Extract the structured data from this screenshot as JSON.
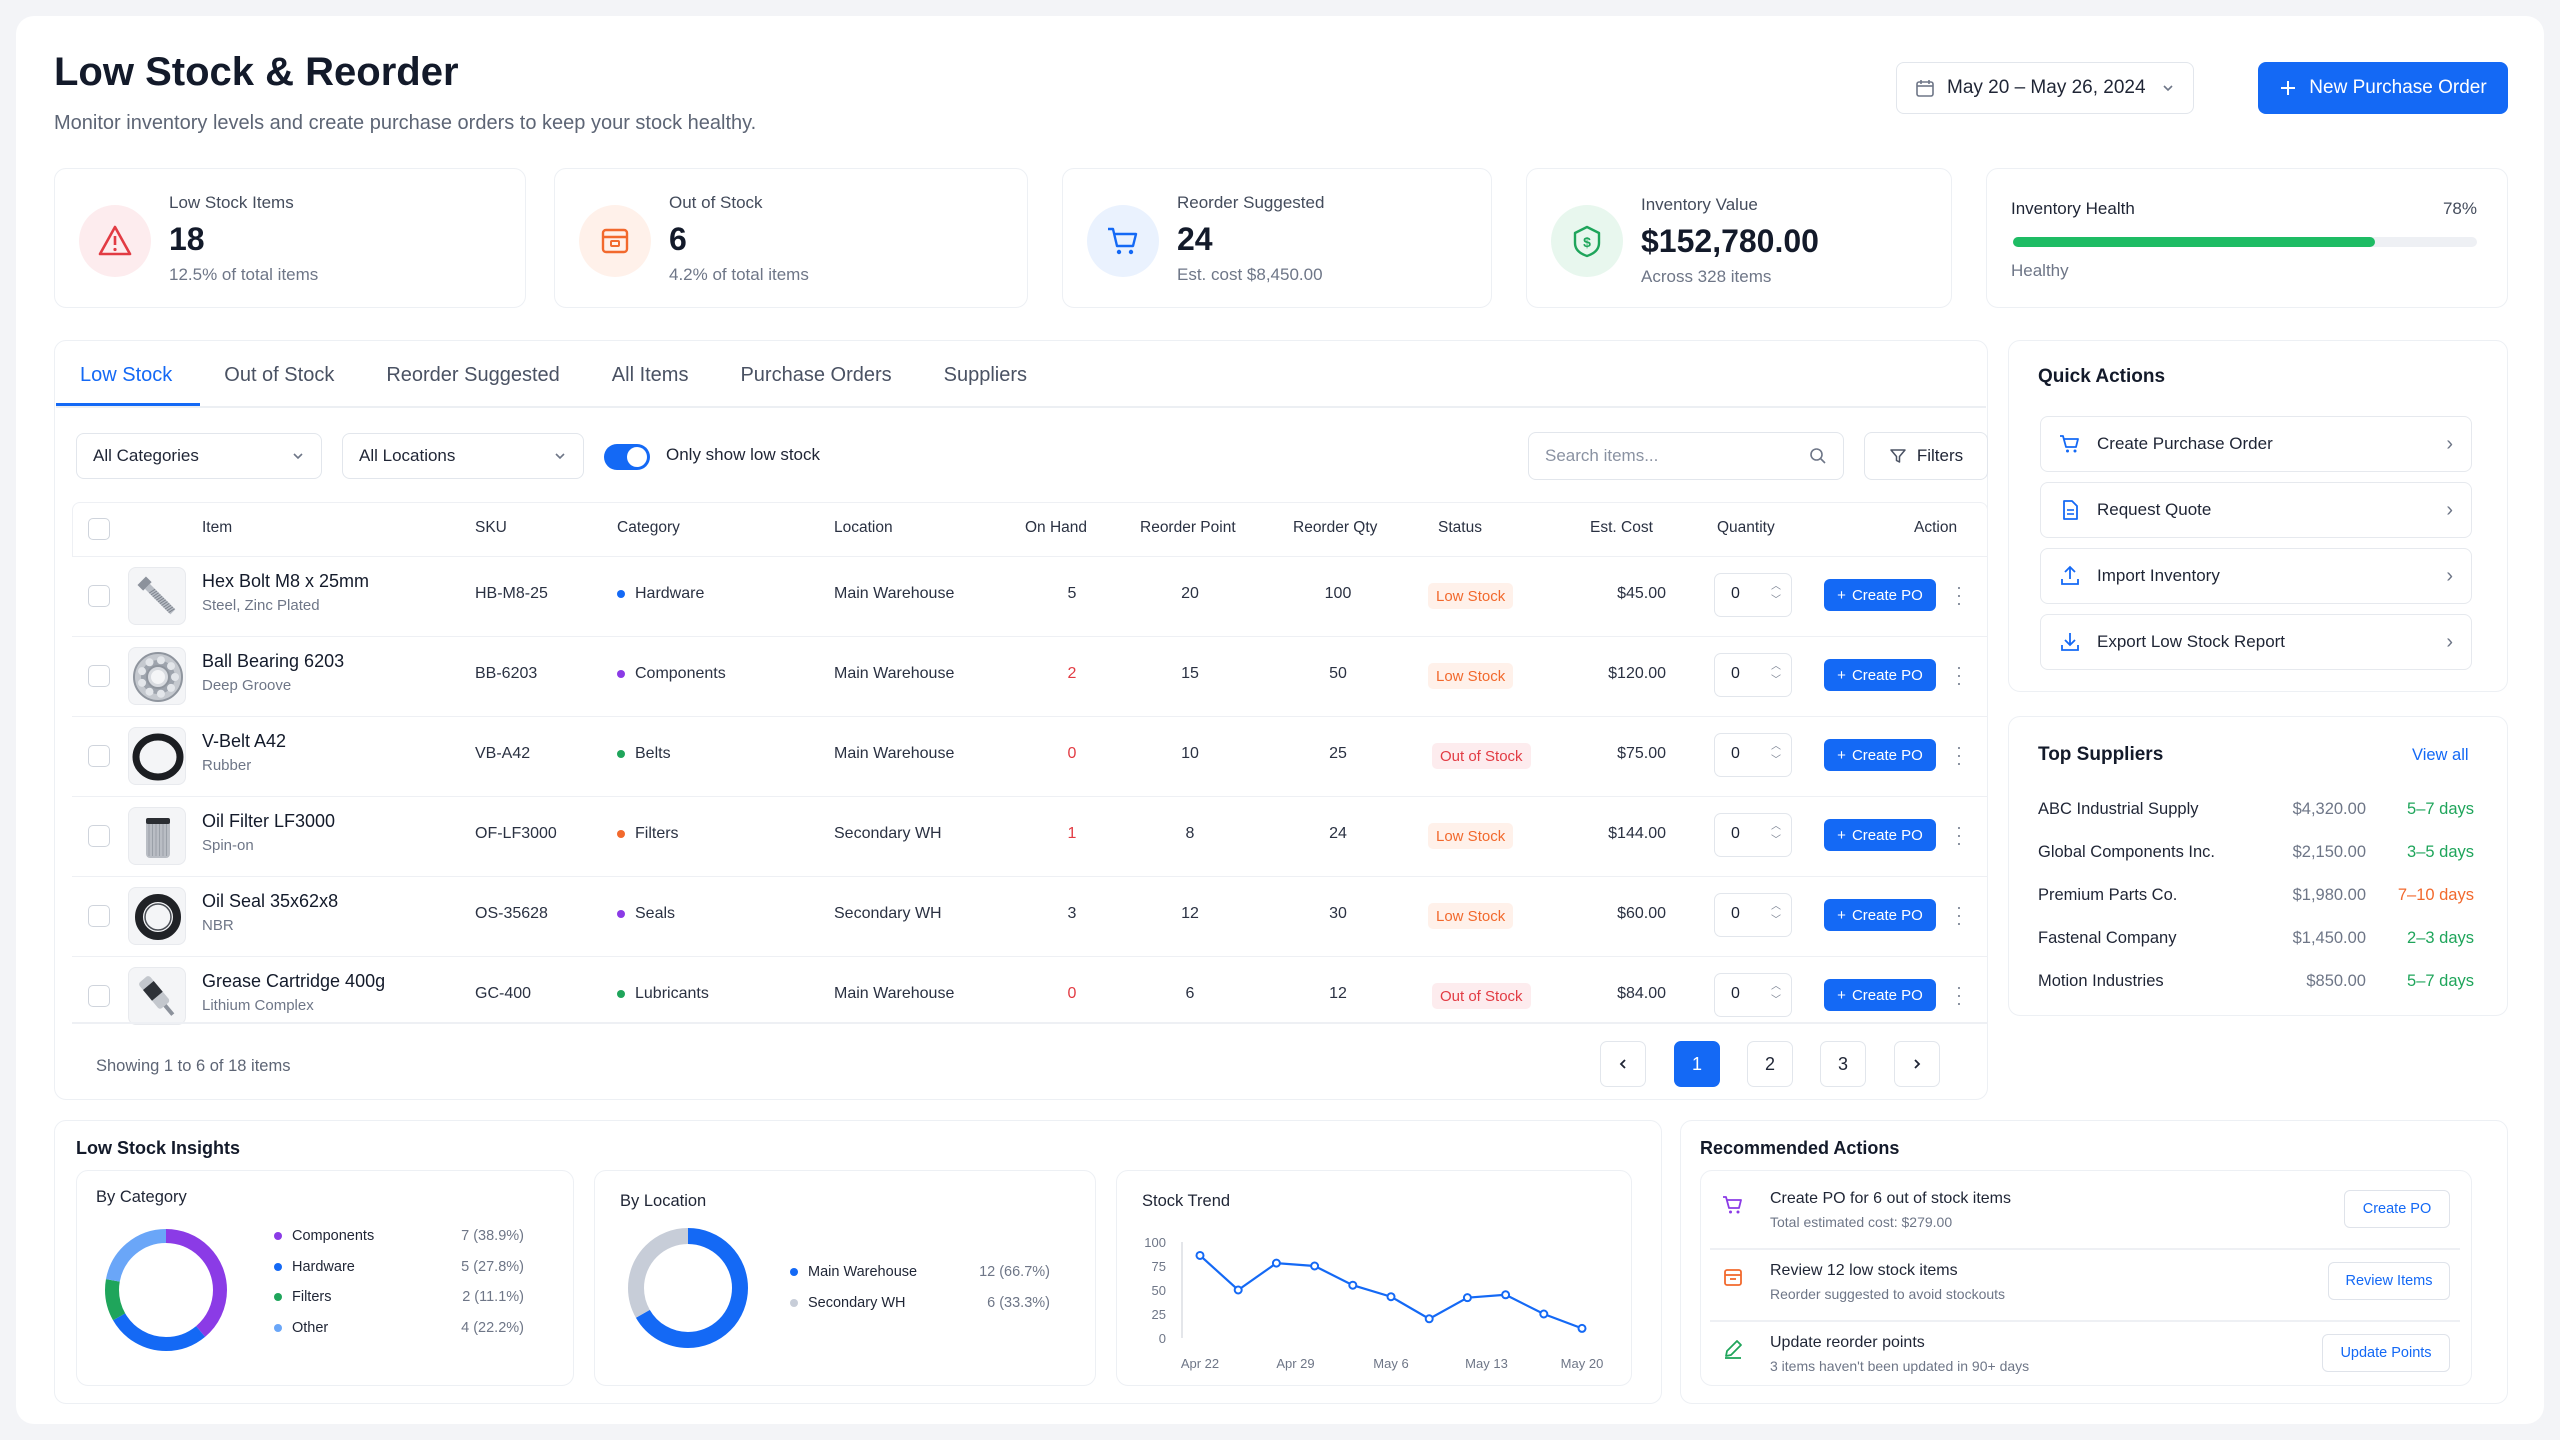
{
  "header": {
    "title": "Low Stock & Reorder",
    "subtitle": "Monitor inventory levels and create purchase orders to keep your stock healthy.",
    "date_range": "May 20 – May 26, 2024",
    "new_po_label": "New Purchase Order"
  },
  "stats": [
    {
      "label": "Low Stock Items",
      "value": "18",
      "sub": "12.5% of total items",
      "color": "#e23b43"
    },
    {
      "label": "Out of Stock",
      "value": "6",
      "sub": "4.2% of total items",
      "color": "#f2692d"
    },
    {
      "label": "Reorder Suggested",
      "value": "24",
      "sub": "Est. cost $8,450.00",
      "color": "#1469f5"
    },
    {
      "label": "Inventory Value",
      "value": "$152,780.00",
      "sub": "Across 328 items",
      "color": "#1fa55b"
    }
  ],
  "health": {
    "label": "Inventory Health",
    "percent_label": "78%",
    "percent": 0.78,
    "status": "Healthy",
    "color": "#1ebc64"
  },
  "tabs": [
    "Low Stock",
    "Out of Stock",
    "Reorder Suggested",
    "All Items",
    "Purchase Orders",
    "Suppliers"
  ],
  "filters": {
    "category": "All Categories",
    "location": "All Locations",
    "toggle_label": "Only show low stock",
    "search_placeholder": "Search items...",
    "filters_label": "Filters"
  },
  "table": {
    "headers": [
      "Item",
      "SKU",
      "Category",
      "Location",
      "On Hand",
      "Reorder Point",
      "Reorder Qty",
      "Status",
      "Est. Cost",
      "Quantity",
      "Action"
    ],
    "action_label": "Create PO",
    "rows": [
      {
        "name": "Hex Bolt M8 x 25mm",
        "sub": "Steel, Zinc Plated",
        "sku": "HB-M8-25",
        "category": "Hardware",
        "cat_color": "#1469f5",
        "location": "Main Warehouse",
        "on_hand": "5",
        "reorder_point": "20",
        "reorder_qty": "100",
        "status": "Low Stock",
        "status_type": "low",
        "cost": "$45.00",
        "qty": "0",
        "icon": "bolt-icon"
      },
      {
        "name": "Ball Bearing 6203",
        "sub": "Deep Groove",
        "sku": "BB-6203",
        "category": "Components",
        "cat_color": "#8b3be6",
        "location": "Main Warehouse",
        "on_hand": "2",
        "reorder_point": "15",
        "reorder_qty": "50",
        "status": "Low Stock",
        "status_type": "low",
        "cost": "$120.00",
        "qty": "0",
        "icon": "bearing-icon"
      },
      {
        "name": "V-Belt A42",
        "sub": "Rubber",
        "sku": "VB-A42",
        "category": "Belts",
        "cat_color": "#1fa55b",
        "location": "Main Warehouse",
        "on_hand": "0",
        "reorder_point": "10",
        "reorder_qty": "25",
        "status": "Out of Stock",
        "status_type": "out",
        "cost": "$75.00",
        "qty": "0",
        "icon": "belt-icon"
      },
      {
        "name": "Oil Filter LF3000",
        "sub": "Spin-on",
        "sku": "OF-LF3000",
        "category": "Filters",
        "cat_color": "#f2692d",
        "location": "Secondary WH",
        "on_hand": "1",
        "reorder_point": "8",
        "reorder_qty": "24",
        "status": "Low Stock",
        "status_type": "low",
        "cost": "$144.00",
        "qty": "0",
        "icon": "filter-icon"
      },
      {
        "name": "Oil Seal 35x62x8",
        "sub": "NBR",
        "sku": "OS-35628",
        "category": "Seals",
        "cat_color": "#8b3be6",
        "location": "Secondary WH",
        "on_hand": "3",
        "reorder_point": "12",
        "reorder_qty": "30",
        "status": "Low Stock",
        "status_type": "low",
        "cost": "$60.00",
        "qty": "0",
        "icon": "seal-icon"
      },
      {
        "name": "Grease Cartridge 400g",
        "sub": "Lithium Complex",
        "sku": "GC-400",
        "category": "Lubricants",
        "cat_color": "#1fa55b",
        "location": "Main Warehouse",
        "on_hand": "0",
        "reorder_point": "6",
        "reorder_qty": "12",
        "status": "Out of Stock",
        "status_type": "out",
        "cost": "$84.00",
        "qty": "0",
        "icon": "grease-icon"
      }
    ],
    "showing": "Showing 1 to 6 of 18 items",
    "pages": [
      "1",
      "2",
      "3"
    ]
  },
  "quick_actions": {
    "title": "Quick Actions",
    "items": [
      {
        "label": "Create Purchase Order",
        "icon": "cart-icon"
      },
      {
        "label": "Request Quote",
        "icon": "document-icon"
      },
      {
        "label": "Import Inventory",
        "icon": "upload-icon"
      },
      {
        "label": "Export Low Stock Report",
        "icon": "download-icon"
      }
    ]
  },
  "suppliers": {
    "title": "Top Suppliers",
    "view_all": "View all",
    "items": [
      {
        "name": "ABC Industrial Supply",
        "amount": "$4,320.00",
        "days": "5–7 days",
        "color": "#1fa55b"
      },
      {
        "name": "Global Components Inc.",
        "amount": "$2,150.00",
        "days": "3–5 days",
        "color": "#1fa55b"
      },
      {
        "name": "Premium Parts Co.",
        "amount": "$1,980.00",
        "days": "7–10 days",
        "color": "#f2692d"
      },
      {
        "name": "Fastenal Company",
        "amount": "$1,450.00",
        "days": "2–3 days",
        "color": "#1fa55b"
      },
      {
        "name": "Motion Industries",
        "amount": "$850.00",
        "days": "5–7 days",
        "color": "#1fa55b"
      }
    ]
  },
  "insights": {
    "title": "Low Stock Insights",
    "by_category": {
      "title": "By Category",
      "items": [
        {
          "label": "Components",
          "value": "7 (38.9%)",
          "count": 7,
          "color": "#8b3be6"
        },
        {
          "label": "Hardware",
          "value": "5 (27.8%)",
          "count": 5,
          "color": "#1469f5"
        },
        {
          "label": "Filters",
          "value": "2 (11.1%)",
          "count": 2,
          "color": "#1fa55b"
        },
        {
          "label": "Other",
          "value": "4 (22.2%)",
          "count": 4,
          "color": "#6aa6f8"
        }
      ]
    },
    "by_location": {
      "title": "By Location",
      "items": [
        {
          "label": "Main Warehouse",
          "value": "12 (66.7%)",
          "count": 12,
          "color": "#1469f5"
        },
        {
          "label": "Secondary WH",
          "value": "6 (33.3%)",
          "count": 6,
          "color": "#c7cdd8"
        }
      ]
    }
  },
  "chart_data": {
    "type": "line",
    "title": "Stock Trend",
    "x_ticks": [
      "Apr 22",
      "Apr 29",
      "May 6",
      "May 13",
      "May 20"
    ],
    "y_ticks": [
      "100",
      "75",
      "50",
      "25",
      "0"
    ],
    "ylim": [
      0,
      100
    ],
    "series": [
      {
        "color": "#1469f5",
        "values": [
          86,
          50,
          78,
          75,
          55,
          43,
          20,
          42,
          45,
          25,
          10
        ]
      }
    ]
  },
  "recommended": {
    "title": "Recommended Actions",
    "items": [
      {
        "title": "Create PO for 6 out of stock items",
        "sub": "Total estimated cost: $279.00",
        "button": "Create PO",
        "icon": "cart-icon",
        "color": "#8b3be6"
      },
      {
        "title": "Review 12 low stock items",
        "sub": "Reorder suggested to avoid stockouts",
        "button": "Review Items",
        "icon": "box-icon",
        "color": "#f2692d"
      },
      {
        "title": "Update reorder points",
        "sub": "3 items haven't been updated in 90+ days",
        "button": "Update Points",
        "icon": "edit-icon",
        "color": "#1fa55b"
      }
    ]
  }
}
